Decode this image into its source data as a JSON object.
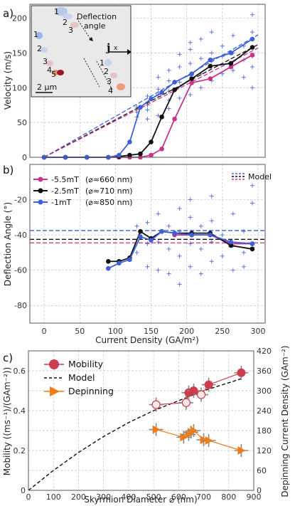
{
  "chart_data": [
    {
      "panel": "a)",
      "type": "line",
      "xlabel": "",
      "ylabel": "Velocity (m/s)",
      "xlim": [
        -20,
        310
      ],
      "ylim": [
        0,
        220
      ],
      "xticks": [
        "0",
        "50",
        "100",
        "150",
        "200",
        "250",
        "300"
      ],
      "yticks": [
        "0",
        "50",
        "100",
        "150",
        "200"
      ],
      "grid": true,
      "series": [
        {
          "color": "#c8348a",
          "x": [
            0,
            30,
            60,
            90,
            105,
            120,
            135,
            150,
            165,
            183,
            207,
            233,
            262,
            292
          ],
          "y": [
            0,
            0,
            0,
            0,
            0,
            0,
            0,
            3,
            12,
            55,
            107,
            113,
            130,
            147
          ]
        },
        {
          "color": "#111111",
          "x": [
            0,
            30,
            60,
            90,
            105,
            120,
            135,
            150,
            165,
            183,
            207,
            233,
            262,
            292
          ],
          "y": [
            0,
            0,
            0,
            0,
            1,
            3,
            5,
            22,
            58,
            97,
            113,
            131,
            135,
            158
          ]
        },
        {
          "color": "#3f5fd6",
          "x": [
            0,
            30,
            60,
            90,
            105,
            120,
            135,
            150,
            165,
            183,
            207,
            233,
            262,
            292
          ],
          "y": [
            0,
            0,
            0,
            0,
            3,
            22,
            72,
            84,
            93,
            108,
            120,
            140,
            150,
            170
          ]
        }
      ],
      "model_lines": [
        {
          "color": "#3f5fd6",
          "x": [
            0,
            300
          ],
          "y": [
            0,
            176
          ]
        },
        {
          "color": "#111111",
          "x": [
            0,
            300
          ],
          "y": [
            0,
            162
          ]
        },
        {
          "color": "#c8348a",
          "x": [
            0,
            300
          ],
          "y": [
            0,
            157
          ]
        }
      ],
      "scatter": {
        "color": "#5a78d8",
        "x": [
          130,
          130,
          130,
          145,
          145,
          145,
          145,
          160,
          160,
          160,
          160,
          175,
          175,
          175,
          175,
          175,
          190,
          190,
          190,
          190,
          205,
          205,
          205,
          205,
          205,
          220,
          220,
          220,
          220,
          235,
          235,
          235,
          235,
          250,
          250,
          250,
          265,
          265,
          265,
          280,
          280,
          280,
          292,
          292,
          292,
          292,
          292
        ],
        "y": [
          58,
          72,
          65,
          55,
          75,
          88,
          68,
          60,
          90,
          98,
          115,
          70,
          95,
          110,
          125,
          82,
          85,
          108,
          130,
          148,
          90,
          118,
          135,
          155,
          165,
          100,
          120,
          142,
          170,
          110,
          138,
          150,
          180,
          120,
          145,
          160,
          125,
          150,
          175,
          115,
          140,
          160,
          100,
          145,
          180,
          205,
          130
        ]
      },
      "inset": {
        "title": "Deflection\nangle",
        "current_label": "j",
        "axis_label": "x",
        "scale_bar": "2 μm",
        "frame_labels_top": [
          "1",
          "2",
          "3"
        ],
        "frame_labels_right": [
          "1",
          "2",
          "3",
          "4"
        ],
        "frame_labels_left": [
          "1",
          "2",
          "3",
          "4",
          "5"
        ]
      }
    },
    {
      "panel": "b)",
      "type": "line",
      "xlabel": "Current Density (GA/m²)",
      "ylabel": "Deflection Angle (°)",
      "xlim": [
        -20,
        310
      ],
      "ylim": [
        -90,
        0
      ],
      "xticks": [
        "0",
        "50",
        "100",
        "150",
        "200",
        "250",
        "300"
      ],
      "yticks": [
        "-20",
        "-40",
        "-60",
        "-80"
      ],
      "grid": true,
      "legend_position": "upper-left",
      "series": [
        {
          "name": "-5.5mT",
          "diameter_label": "(⌀≈660 nm)",
          "color": "#c8348a",
          "x": [
            183,
            207,
            233,
            262,
            292
          ],
          "y": [
            -40,
            -40,
            -40,
            -45,
            -45
          ]
        },
        {
          "name": "-2.5mT",
          "diameter_label": "(⌀≈710 nm)",
          "color": "#111111",
          "x": [
            90,
            105,
            120,
            135,
            150,
            165,
            183,
            207,
            233,
            262,
            292
          ],
          "y": [
            -55,
            -55,
            -53,
            -38,
            -42,
            -38,
            -39,
            -39,
            -39,
            -46,
            -48
          ]
        },
        {
          "name": "-1mT",
          "diameter_label": "(⌀≈850 nm)",
          "color": "#3f5fd6",
          "x": [
            90,
            105,
            120,
            135,
            150,
            165,
            183,
            207,
            233,
            262,
            292
          ],
          "y": [
            -59,
            -56,
            -54,
            -41,
            -43,
            -38,
            -39,
            -40,
            -40,
            -44,
            -45
          ]
        }
      ],
      "model_label": "Model",
      "model_lines": [
        {
          "color": "#3f5fd6",
          "y": -37.5
        },
        {
          "color": "#111111",
          "y": -42.5
        },
        {
          "color": "#c8348a",
          "y": -44.5
        }
      ],
      "scatter": {
        "color": "#5a78d8",
        "x": [
          130,
          130,
          145,
          145,
          145,
          160,
          160,
          160,
          175,
          175,
          175,
          190,
          190,
          190,
          190,
          205,
          205,
          205,
          205,
          220,
          220,
          220,
          235,
          235,
          235,
          235,
          250,
          250,
          265,
          265,
          265,
          280,
          280,
          280,
          292,
          292,
          292
        ],
        "y": [
          -35,
          -50,
          -33,
          -45,
          -58,
          -28,
          -44,
          -60,
          -35,
          -48,
          -62,
          -25,
          -38,
          -52,
          -68,
          -20,
          -30,
          -45,
          -58,
          -35,
          -48,
          -62,
          -18,
          -32,
          -44,
          -55,
          -40,
          -52,
          -28,
          -46,
          -60,
          -38,
          -50,
          -58,
          -12,
          -22,
          -47
        ]
      }
    },
    {
      "panel": "c)",
      "type": "scatter",
      "xlabel": "Skyrmion Diameter ⌀ (nm)",
      "ylabel": "Mobility ((ms⁻¹)/(GAm⁻²))",
      "ylabel_right": "Depinning Current Density (GAm⁻²)",
      "xlim": [
        0,
        900
      ],
      "ylim": [
        0,
        0.7
      ],
      "ylim_right": [
        0,
        420
      ],
      "xticks": [
        "0",
        "100",
        "200",
        "300",
        "400",
        "500",
        "600",
        "700",
        "800",
        "900"
      ],
      "yticks": [
        "0",
        "0.2",
        "0.4",
        "0.6"
      ],
      "yticks_right": [
        "0",
        "60",
        "120",
        "180",
        "240",
        "300",
        "360",
        "420"
      ],
      "grid": true,
      "legend": [
        "Mobility",
        "Model",
        "Depinning"
      ],
      "series": [
        {
          "name": "Mobility",
          "color": "#cc3d4f",
          "x": [
            510,
            630,
            640,
            660,
            690,
            720,
            850
          ],
          "y": [
            0.43,
            0.44,
            0.49,
            0.5,
            0.48,
            0.53,
            0.59
          ],
          "hollow": [
            true,
            true,
            false,
            false,
            true,
            false,
            false
          ]
        },
        {
          "name": "Model",
          "color": "#111111",
          "x": [
            0,
            100,
            200,
            300,
            400,
            500,
            600,
            650,
            700,
            750,
            800,
            850
          ],
          "y": [
            0,
            0.1,
            0.19,
            0.27,
            0.34,
            0.4,
            0.45,
            0.475,
            0.5,
            0.52,
            0.54,
            0.56
          ]
        },
        {
          "name": "Depinning",
          "color": "#f07d1a",
          "x": [
            510,
            620,
            640,
            650,
            660,
            700,
            720,
            850
          ],
          "y": [
            183,
            160,
            168,
            175,
            180,
            152,
            150,
            120
          ]
        }
      ]
    }
  ]
}
